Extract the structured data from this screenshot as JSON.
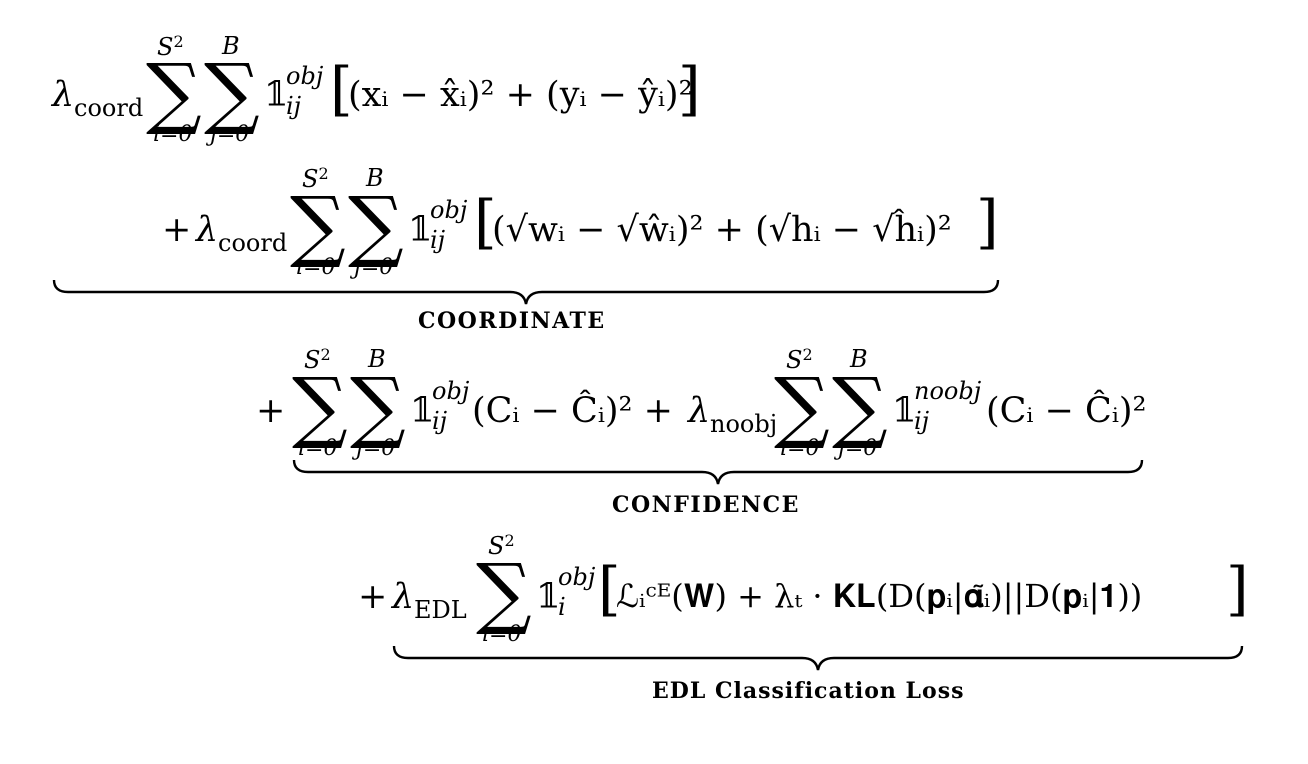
{
  "lines": {
    "line1": {
      "lambda": "λ",
      "lambda_sub": "coord",
      "sum1_upper": "S",
      "sum1_upper_sup": "2",
      "sum1_lower": "i=0",
      "sum2_upper": "B",
      "sum2_lower": "j=0",
      "indicator": "𝟙",
      "indicator_sup": "obj",
      "indicator_sub": "ij",
      "body": "(xᵢ − x̂ᵢ)² + (yᵢ − ŷᵢ)²"
    },
    "line2": {
      "plus": "+",
      "lambda": "λ",
      "lambda_sub": "coord",
      "sum1_upper": "S",
      "sum1_upper_sup": "2",
      "sum1_lower": "i=0",
      "sum2_upper": "B",
      "sum2_lower": "j=0",
      "indicator": "𝟙",
      "indicator_sup": "obj",
      "indicator_sub": "ij",
      "body": "(√wᵢ − √ŵᵢ)² + (√hᵢ − √ĥᵢ)²"
    },
    "line3": {
      "plus": "+",
      "sum1_upper": "S",
      "sum1_upper_sup": "2",
      "sum1_lower": "i=0",
      "sum2_upper": "B",
      "sum2_lower": "j=0",
      "indicator": "𝟙",
      "indicator_sup": "obj",
      "indicator_sub": "ij",
      "term1": "(Cᵢ − Ĉᵢ)² + ",
      "lambda": "λ",
      "lambda_sub": "noobj",
      "sum3_upper": "S",
      "sum3_upper_sup": "2",
      "sum3_lower": "i=0",
      "sum4_upper": "B",
      "sum4_lower": "j=0",
      "indicator2": "𝟙",
      "indicator2_sup": "noobj",
      "indicator2_sub": "ij",
      "term2": "(Cᵢ − Ĉᵢ)²"
    },
    "line4": {
      "plus": "+",
      "lambda": "λ",
      "lambda_sub": "EDL",
      "sum_upper": "S",
      "sum_upper_sup": "2",
      "sum_lower": "i=0",
      "indicator": "𝟙",
      "indicator_sup": "obj",
      "indicator_sub": "i",
      "body": "ℒᵢᶜᴱ(𝐖) + λₜ · 𝐊𝐋(D(𝐩ᵢ|𝛂̃ᵢ)||D(𝐩ᵢ|𝟏))"
    }
  },
  "braces": {
    "coordinate_label": "COORDINATE",
    "confidence_label": "CONFIDENCE",
    "edl_label": "EDL Classification Loss"
  }
}
